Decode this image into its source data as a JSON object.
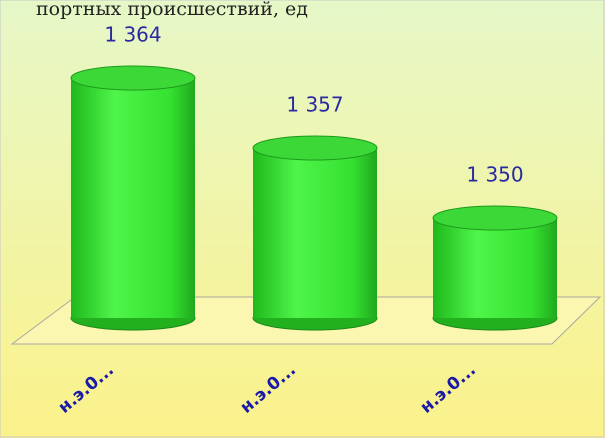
{
  "chart_data": {
    "type": "bar",
    "title": "портных происшествий, ед",
    "categories": [
      "н.э.0...",
      "н.э.0...",
      "н.э.0..."
    ],
    "values": [
      1364,
      1357,
      1350
    ],
    "value_labels": [
      "1 364",
      "1 357",
      "1 350"
    ],
    "color": "#3ee83a",
    "ylim": [
      1340,
      1366
    ]
  }
}
